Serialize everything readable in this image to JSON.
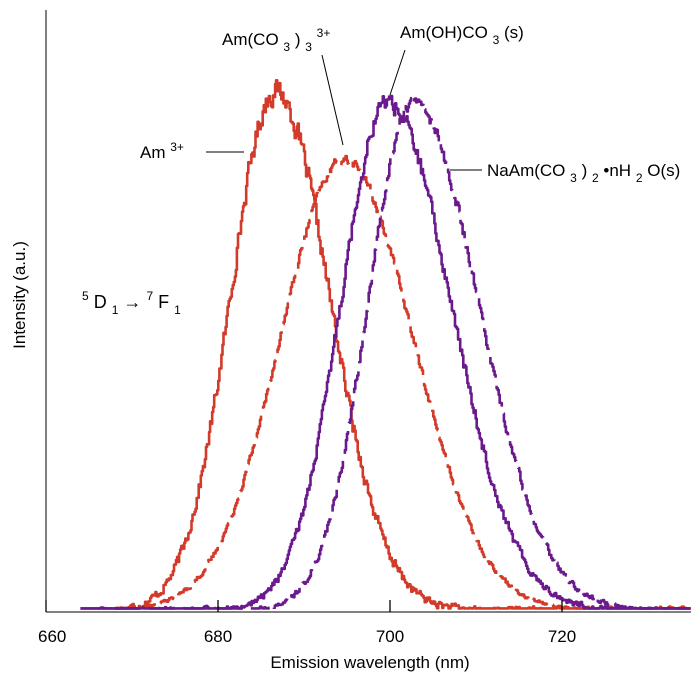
{
  "chart_data": {
    "type": "line",
    "xlabel": "Emission wavelength (nm)",
    "ylabel": "Intensity (a.u.)",
    "xlim": [
      660,
      735
    ],
    "ylim": [
      0,
      1.0
    ],
    "xticks": [
      660,
      680,
      700,
      720
    ],
    "grid": false,
    "transition_label": {
      "sup1": "5",
      "base1": "D",
      "sub1": "1",
      "arrow": " → ",
      "sup2": "7",
      "base2": "F",
      "sub2": "1"
    },
    "series": [
      {
        "name": "Am3+",
        "label": {
          "base": "Am",
          "sup": "3+"
        },
        "color": "#d23a2a",
        "dash": "solid",
        "center": 686.5,
        "sigma_left": 5.2,
        "sigma_right": 6.3,
        "peak": 0.98,
        "noise": 0.028,
        "x": [
          666,
          668,
          670,
          672,
          674,
          676,
          678,
          680,
          682,
          684,
          686,
          688,
          690,
          692,
          694,
          696,
          698,
          700,
          702,
          704,
          706,
          708,
          710,
          712,
          714,
          716,
          718,
          720,
          722,
          724,
          726,
          728,
          730,
          732,
          734
        ],
        "y": [
          0.0,
          0.01,
          0.03,
          0.06,
          0.11,
          0.18,
          0.28,
          0.45,
          0.68,
          0.86,
          0.96,
          0.97,
          0.89,
          0.78,
          0.67,
          0.55,
          0.45,
          0.32,
          0.25,
          0.18,
          0.13,
          0.1,
          0.07,
          0.05,
          0.04,
          0.03,
          0.02,
          0.02,
          0.02,
          0.01,
          0.01,
          0.01,
          0.01,
          0.01,
          0.01
        ]
      },
      {
        "name": "Am(CO3)3 3+",
        "label": {
          "base": "Am(CO",
          "sub": "3",
          "base2": ")",
          "sub2": "3",
          "sup": "3+"
        },
        "color": "#d23a2a",
        "dash": "dashed",
        "center": 694.5,
        "sigma_left": 7.4,
        "sigma_right": 8.0,
        "peak": 0.85,
        "noise": 0.012,
        "x": [
          664,
          668,
          672,
          676,
          680,
          684,
          688,
          690,
          692,
          694,
          696,
          698,
          700,
          702,
          704,
          706,
          708,
          710,
          712,
          714,
          716,
          720,
          724,
          728,
          734
        ],
        "y": [
          0.0,
          0.01,
          0.02,
          0.05,
          0.11,
          0.24,
          0.48,
          0.62,
          0.75,
          0.85,
          0.84,
          0.8,
          0.72,
          0.62,
          0.5,
          0.42,
          0.32,
          0.24,
          0.16,
          0.11,
          0.07,
          0.03,
          0.02,
          0.01,
          0.0
        ]
      },
      {
        "name": "Am(OH)CO3(s)",
        "label": {
          "base": "Am(OH)CO",
          "sub": "3",
          "base2": "(s)"
        },
        "color": "#6a1a8c",
        "dash": "solid",
        "center": 699.5,
        "sigma_left": 5.4,
        "sigma_right": 7.4,
        "peak": 0.96,
        "noise": 0.022,
        "x": [
          664,
          668,
          672,
          676,
          680,
          684,
          688,
          690,
          692,
          694,
          696,
          698,
          700,
          702,
          704,
          706,
          708,
          710,
          712,
          714,
          716,
          718,
          720,
          722,
          724,
          726,
          728,
          730,
          734
        ],
        "y": [
          0.0,
          0.0,
          0.01,
          0.02,
          0.03,
          0.06,
          0.15,
          0.28,
          0.44,
          0.64,
          0.82,
          0.95,
          0.93,
          0.88,
          0.78,
          0.66,
          0.52,
          0.4,
          0.3,
          0.2,
          0.16,
          0.11,
          0.08,
          0.06,
          0.04,
          0.02,
          0.02,
          0.01,
          0.0
        ]
      },
      {
        "name": "NaAm(CO3)2•nH2O(s)",
        "label": {
          "base": "NaAm(CO",
          "sub": "3",
          "base2": ")",
          "sub2": "2",
          "base3": "•nH",
          "sub3": "2",
          "base4": "O(s)"
        },
        "color": "#6a1a8c",
        "dash": "dashed",
        "center": 702.5,
        "sigma_left": 5.2,
        "sigma_right": 7.6,
        "peak": 0.96,
        "noise": 0.015,
        "x": [
          668,
          672,
          676,
          680,
          684,
          688,
          692,
          694,
          696,
          698,
          700,
          702,
          704,
          706,
          708,
          710,
          712,
          714,
          716,
          718,
          720,
          724,
          728,
          732,
          734
        ],
        "y": [
          0.0,
          0.01,
          0.01,
          0.02,
          0.03,
          0.08,
          0.25,
          0.42,
          0.6,
          0.76,
          0.86,
          0.94,
          0.94,
          0.84,
          0.7,
          0.54,
          0.46,
          0.34,
          0.25,
          0.15,
          0.1,
          0.05,
          0.03,
          0.02,
          0.01
        ]
      }
    ]
  }
}
